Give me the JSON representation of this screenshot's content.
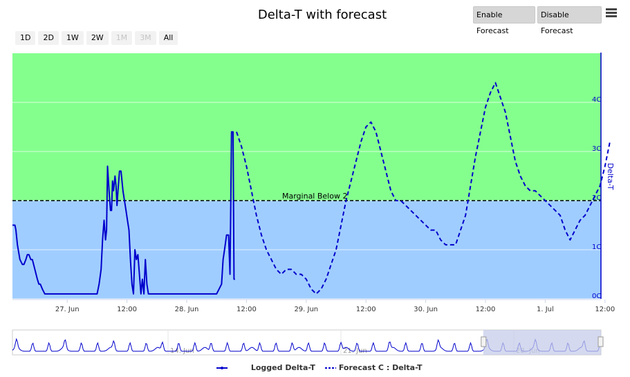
{
  "title": "Delta-T with forecast",
  "range_buttons": [
    {
      "label": "1D",
      "enabled": true
    },
    {
      "label": "2D",
      "enabled": true
    },
    {
      "label": "1W",
      "enabled": true
    },
    {
      "label": "2W",
      "enabled": true
    },
    {
      "label": "1M",
      "enabled": false
    },
    {
      "label": "3M",
      "enabled": false
    },
    {
      "label": "All",
      "enabled": true
    }
  ],
  "forecast_buttons": {
    "enable": "Enable Forecast",
    "disable": "Disable Forecast"
  },
  "menu_icon": "hamburger-menu-icon",
  "colors": {
    "good_band": "#84ff8e",
    "marginal_band": "#a0cdff",
    "series": "#0000cc",
    "threshold": "#000000",
    "navigator_mask": "#c6cce9"
  },
  "chart_data": {
    "type": "line",
    "title": "Delta-T with forecast",
    "ylabel": "Delta-T",
    "y_axis_side": "right",
    "ylim": [
      0,
      5
    ],
    "yticks": [
      0,
      1,
      2,
      3,
      4
    ],
    "ytick_labels": [
      "0C",
      "1C",
      "2C",
      "3C",
      "4C"
    ],
    "xlim": [
      "2024-06-26 13:00",
      "2024-07-01 13:00"
    ],
    "xtick_labels": [
      "27. Jun",
      "12:00",
      "28. Jun",
      "12:00",
      "29. Jun",
      "12:00",
      "30. Jun",
      "12:00",
      "1. Jul",
      "12:00"
    ],
    "bands": [
      {
        "from": 0,
        "to": 2,
        "color": "#a0cdff"
      },
      {
        "from": 2,
        "to": 5,
        "color": "#84ff8e"
      }
    ],
    "threshold": {
      "value": 2,
      "label": "Marginal Below 2"
    },
    "series": [
      {
        "name": "Logged Delta-T",
        "legend_label": "Logged  Delta-T",
        "style": "solid",
        "x_hours": [
          0,
          0.5,
          0.7,
          1.0,
          1.5,
          2.0,
          2.3,
          2.7,
          3.0,
          3.3,
          3.7,
          4.0,
          4.5,
          5.0,
          5.3,
          5.6,
          6.0,
          6.5,
          7.0,
          7.4,
          7.7,
          8.0,
          9.0,
          10,
          12,
          14,
          15,
          16,
          17,
          17.4,
          17.8,
          18.1,
          18.4,
          18.7,
          18.9,
          19.1,
          19.4,
          19.7,
          19.9,
          20.1,
          20.3,
          20.6,
          20.8,
          21.0,
          21.2,
          21.5,
          21.8,
          22.0,
          22.2,
          22.5,
          22.8,
          23.1,
          23.4,
          23.7,
          24.0,
          24.3,
          24.6,
          24.9,
          25.2,
          25.5,
          25.8,
          26.1,
          26.4,
          26.7,
          27.0,
          27.3,
          27.6,
          27.9,
          28.2,
          28.5,
          28.8,
          29,
          30,
          31,
          33,
          36,
          39,
          41,
          42,
          42.3,
          42.6,
          43,
          43.4,
          43.7,
          44.0,
          44.3,
          44.5,
          44.7
        ],
        "values": [
          1.5,
          1.5,
          1.4,
          1.1,
          0.8,
          0.7,
          0.7,
          0.8,
          0.9,
          0.9,
          0.8,
          0.8,
          0.6,
          0.4,
          0.3,
          0.3,
          0.2,
          0.1,
          0.1,
          0.1,
          0.1,
          0.1,
          0.1,
          0.1,
          0.1,
          0.1,
          0.1,
          0.1,
          0.1,
          0.3,
          0.6,
          1.2,
          1.6,
          1.2,
          1.4,
          2.7,
          2.2,
          1.8,
          1.8,
          2.4,
          2.2,
          2.5,
          2.3,
          1.9,
          2.2,
          2.6,
          2.6,
          2.4,
          2.2,
          2.0,
          1.8,
          1.6,
          1.4,
          0.8,
          0.3,
          0.1,
          1.0,
          0.8,
          0.9,
          0.5,
          0.1,
          0.4,
          0.1,
          0.8,
          0.3,
          0.1,
          0.1,
          0.1,
          0.1,
          0.1,
          0.1,
          0.1,
          0.1,
          0.1,
          0.1,
          0.1,
          0.1,
          0.1,
          0.3,
          0.8,
          1.0,
          1.3,
          1.3,
          0.5,
          3.4,
          3.4,
          0.4,
          0.4
        ]
      },
      {
        "name": "Forecast C : Delta-T",
        "legend_label": "Forecast C : Delta-T",
        "style": "dashed",
        "x_hours": [
          45,
          46,
          47,
          48,
          49,
          50,
          51,
          52,
          53,
          54,
          55,
          56,
          57,
          58,
          59,
          60,
          61,
          62,
          63,
          64,
          65,
          66,
          67,
          68,
          69,
          70,
          71,
          72,
          73,
          74,
          75,
          76,
          77,
          78,
          79,
          80,
          81,
          82,
          83,
          84,
          85,
          86,
          87,
          88,
          89,
          90,
          91,
          92,
          93,
          94,
          95,
          96,
          97,
          98,
          99,
          100,
          101,
          102,
          103,
          104,
          105,
          106,
          107,
          108,
          109,
          110,
          111,
          112,
          113,
          114,
          115,
          116,
          117,
          118,
          119,
          120
        ],
        "values": [
          3.4,
          3.1,
          2.7,
          2.2,
          1.7,
          1.3,
          1.0,
          0.8,
          0.6,
          0.5,
          0.6,
          0.6,
          0.5,
          0.5,
          0.4,
          0.2,
          0.1,
          0.2,
          0.4,
          0.7,
          1.0,
          1.5,
          2.0,
          2.4,
          2.8,
          3.2,
          3.5,
          3.6,
          3.4,
          3.0,
          2.6,
          2.2,
          2.0,
          2.0,
          1.9,
          1.8,
          1.7,
          1.6,
          1.5,
          1.4,
          1.4,
          1.2,
          1.1,
          1.1,
          1.1,
          1.4,
          1.7,
          2.3,
          2.9,
          3.4,
          3.9,
          4.2,
          4.4,
          4.1,
          3.8,
          3.3,
          2.8,
          2.5,
          2.3,
          2.2,
          2.2,
          2.1,
          2.0,
          1.9,
          1.8,
          1.7,
          1.4,
          1.2,
          1.4,
          1.6,
          1.7,
          1.9,
          2.1,
          2.3,
          2.7,
          3.2
        ]
      }
    ],
    "navigator": {
      "xtick_labels": [
        "14. Jun",
        "21. Jun",
        "28. Jun"
      ],
      "selected_range_fraction": [
        0.8,
        1.0
      ]
    }
  }
}
